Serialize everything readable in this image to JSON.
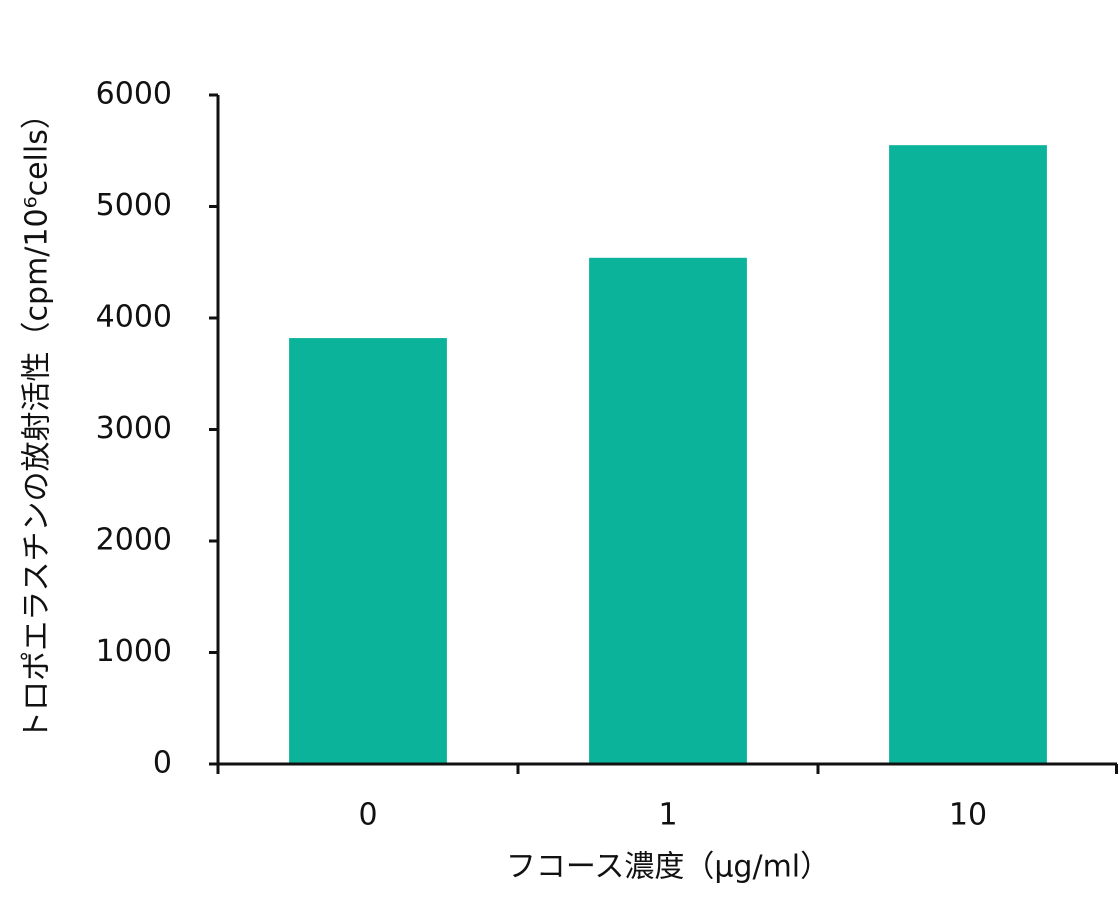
{
  "chart_data": {
    "type": "bar",
    "categories": [
      "0",
      "1",
      "10"
    ],
    "values": [
      3820,
      4540,
      5550
    ],
    "color": "#0bb39a",
    "xlabel": "フコース濃度（μg/ml）",
    "ylabel": "トロポエラスチンの放射活性（cpm/10⁶cells）",
    "ylim": [
      0,
      6000
    ],
    "yticks": [
      0,
      1000,
      2000,
      3000,
      4000,
      5000,
      6000
    ],
    "grid": false
  }
}
